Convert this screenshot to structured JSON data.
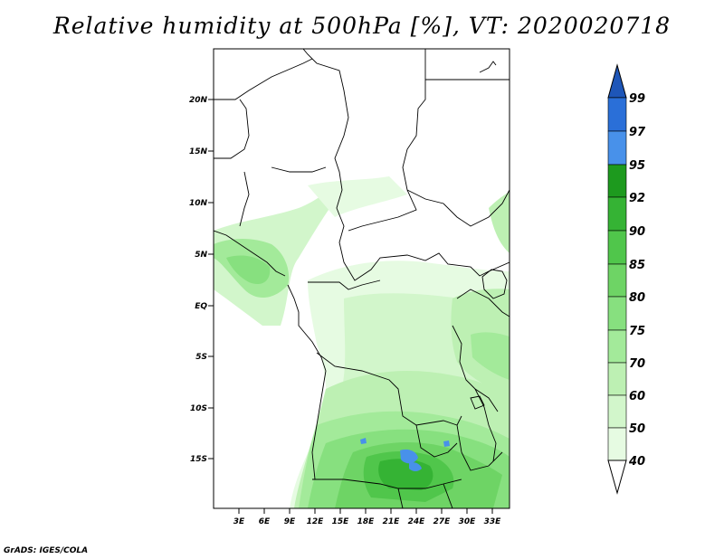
{
  "title": "Relative humidity at 500hPa [%], VT: 2020020718",
  "credit": "GrADS: IGES/COLA",
  "axes": {
    "lon_ticks": [
      "3E",
      "6E",
      "9E",
      "12E",
      "15E",
      "18E",
      "21E",
      "24E",
      "27E",
      "30E",
      "33E"
    ],
    "lat_ticks": [
      "20N",
      "15N",
      "10N",
      "5N",
      "EQ",
      "5S",
      "10S",
      "15S"
    ]
  },
  "colorbar": {
    "levels": [
      "40",
      "50",
      "60",
      "70",
      "75",
      "80",
      "85",
      "90",
      "92",
      "95",
      "97",
      "99"
    ],
    "colors": [
      "#ffffff",
      "#e6fbe2",
      "#d2f6cb",
      "#bdf0b3",
      "#a3ea9a",
      "#87e07f",
      "#6ed465",
      "#50c64b",
      "#35b334",
      "#1d9a1e",
      "#4891ea",
      "#2a6fd8",
      "#1e56b8"
    ]
  },
  "field": {
    "variable": "Relative humidity",
    "level": "500hPa",
    "units": "%",
    "valid_time": "2020020718"
  }
}
